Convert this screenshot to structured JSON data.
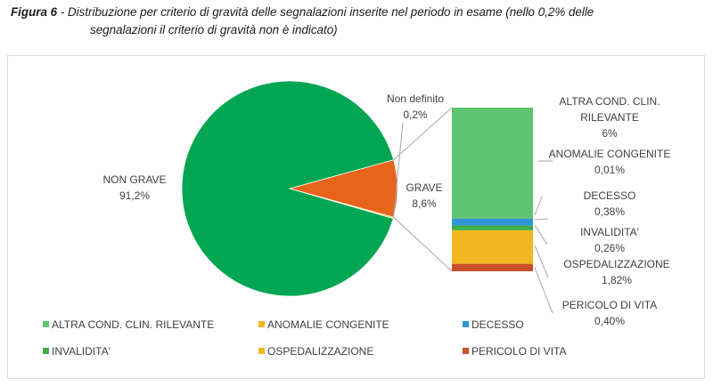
{
  "caption": {
    "label": "Figura 6",
    "text_line1": " - Distribuzione per criterio di gravità delle segnalazioni inserite nel periodo in esame (nello 0,2% delle",
    "text_line2": "segnalazioni il criterio di gravità non è indicato)"
  },
  "chart_data": {
    "type": "bar-of-pie",
    "pie": {
      "slices": [
        {
          "label": "NON GRAVE",
          "value_label": "91,2%",
          "value": 91.2,
          "color": "#00a651"
        },
        {
          "label": "GRAVE",
          "value_label": "8,6%",
          "value": 8.6,
          "color": "#e8641b"
        },
        {
          "label": "Non definito",
          "value_label": "0,2%",
          "value": 0.2,
          "color": "#f0c020"
        }
      ]
    },
    "bar": {
      "stack": [
        {
          "label": "ALTRA COND. CLIN. RILEVANTE",
          "label_lines": [
            "ALTRA COND. CLIN.",
            "RILEVANTE"
          ],
          "value_label": "6%",
          "value": 6,
          "color": "#5dc56f"
        },
        {
          "label": "ANOMALIE CONGENITE",
          "label_lines": [
            "ANOMALIE CONGENITE"
          ],
          "value_label": "0,01%",
          "value": 0.01,
          "color": "#f0b51c"
        },
        {
          "label": "DECESSO",
          "label_lines": [
            "DECESSO"
          ],
          "value_label": "0,38%",
          "value": 0.38,
          "color": "#2e96d6"
        },
        {
          "label": "INVALIDITA'",
          "label_lines": [
            "INVALIDITA'"
          ],
          "value_label": "0,26%",
          "value": 0.26,
          "color": "#3fae49"
        },
        {
          "label": "OSPEDALIZZAZIONE",
          "label_lines": [
            "OSPEDALIZZAZIONE"
          ],
          "value_label": "1,82%",
          "value": 1.82,
          "color": "#f2b822"
        },
        {
          "label": "PERICOLO DI VITA",
          "label_lines": [
            "PERICOLO DI VITA"
          ],
          "value_label": "0,40%",
          "value": 0.4,
          "color": "#c8502a"
        }
      ]
    },
    "legend": {
      "position": "bottom",
      "items": [
        {
          "label": "ALTRA COND. CLIN. RILEVANTE",
          "color": "#5dc56f"
        },
        {
          "label": "ANOMALIE CONGENITE",
          "color": "#f0b51c"
        },
        {
          "label": "DECESSO",
          "color": "#2e96d6"
        },
        {
          "label": "INVALIDITA'",
          "color": "#3fae49"
        },
        {
          "label": "OSPEDALIZZAZIONE",
          "color": "#f2b822"
        },
        {
          "label": "PERICOLO DI VITA",
          "color": "#c8502a"
        }
      ]
    }
  }
}
